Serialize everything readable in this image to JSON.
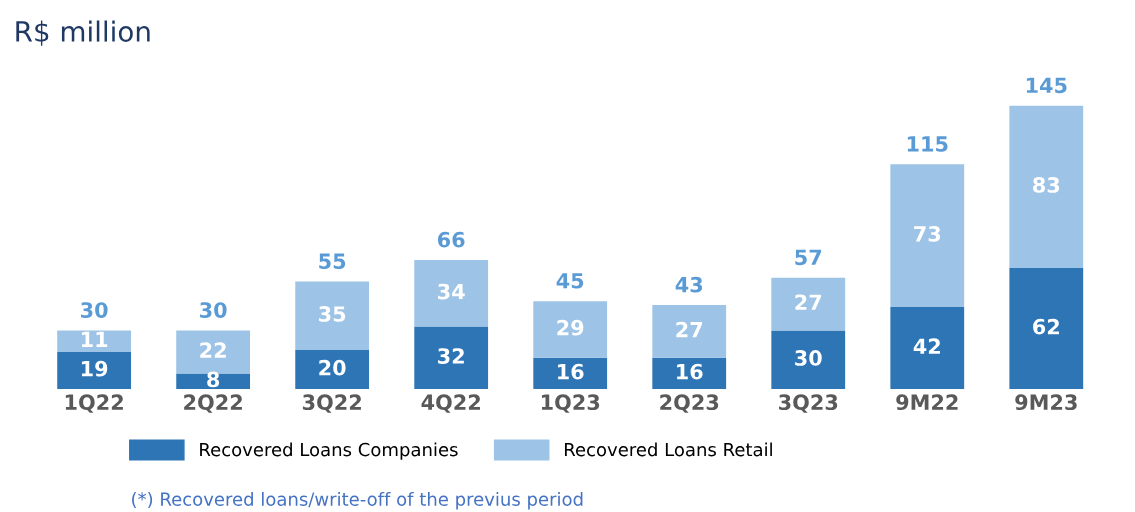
{
  "chart_data": {
    "type": "bar",
    "title": "R$ million",
    "stacked": true,
    "data_labels": true,
    "legend": "bottom",
    "grid": false,
    "tick_labels": "x",
    "categories": [
      "1Q22",
      "2Q22",
      "3Q22",
      "4Q22",
      "1Q23",
      "2Q23",
      "3Q23",
      "9M22",
      "9M23"
    ],
    "series": [
      {
        "name": "Recovered Loans Companies",
        "color": "#2e75b6",
        "values": [
          19,
          8,
          20,
          32,
          16,
          16,
          30,
          42,
          62
        ]
      },
      {
        "name": "Recovered Loans Retail",
        "color": "#9dc3e6",
        "values": [
          11,
          22,
          35,
          34,
          29,
          27,
          27,
          73,
          83
        ]
      }
    ],
    "totals": [
      "30",
      "30",
      "55",
      "66",
      "45",
      "43",
      "57",
      "115",
      "145"
    ],
    "annotations": [
      "(*) Recovered loans/write-off of the previus period"
    ]
  }
}
